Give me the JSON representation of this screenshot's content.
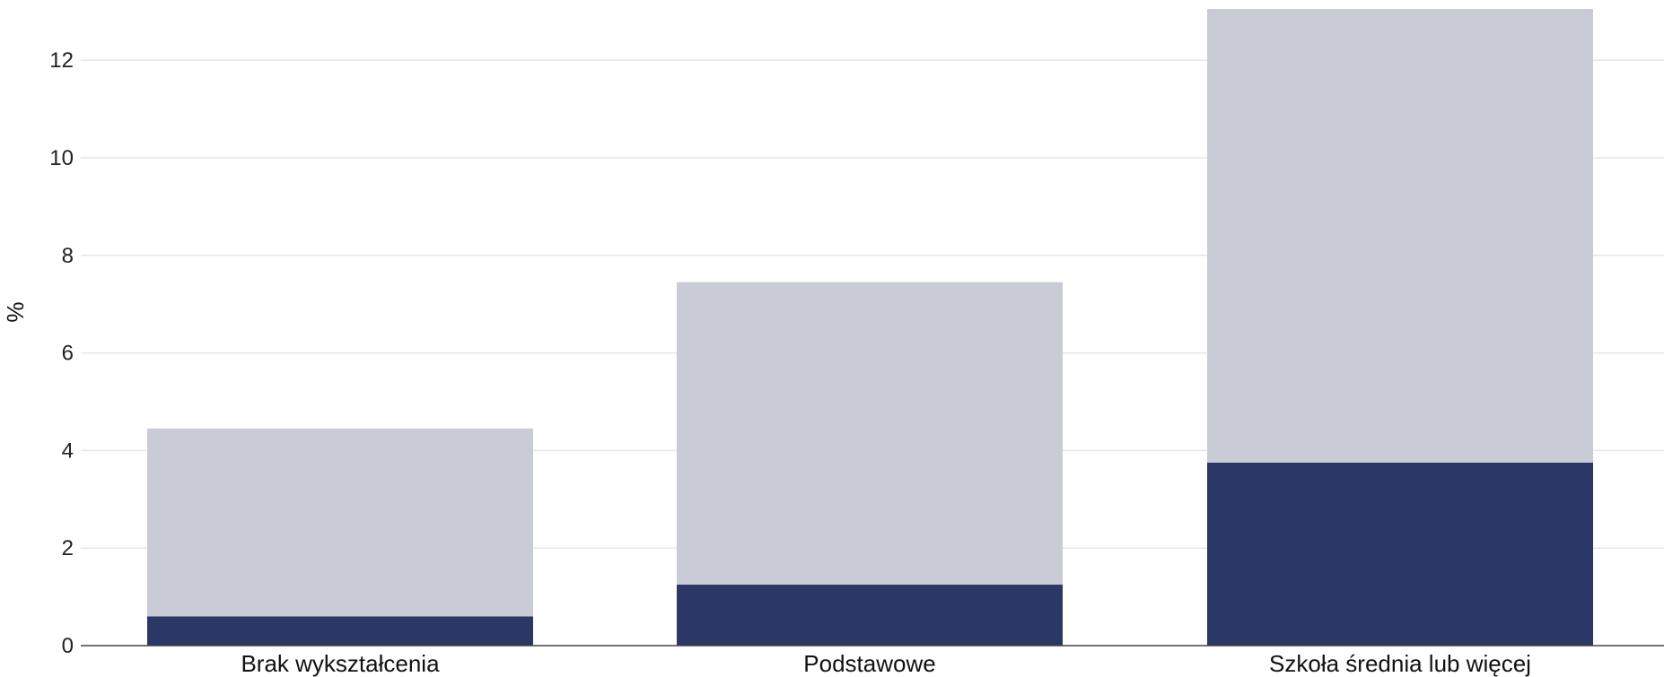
{
  "chart_data": {
    "type": "bar",
    "stacked": true,
    "categories": [
      "Brak wykształcenia",
      "Podstawowe",
      "Szkoła średnia lub więcej"
    ],
    "series": [
      {
        "color": "#2b3764",
        "values": [
          0.6,
          1.25,
          3.75
        ]
      },
      {
        "color": "#c9cbd7",
        "values": [
          3.85,
          6.2,
          9.3
        ]
      }
    ],
    "totals": [
      4.45,
      7.45,
      13.05
    ],
    "title": "",
    "xlabel": "",
    "ylabel": "%",
    "ylim": [
      0,
      13.05
    ],
    "yticks": [
      0,
      2,
      4,
      6,
      8,
      10,
      12
    ],
    "grid": true,
    "legend": "none"
  }
}
